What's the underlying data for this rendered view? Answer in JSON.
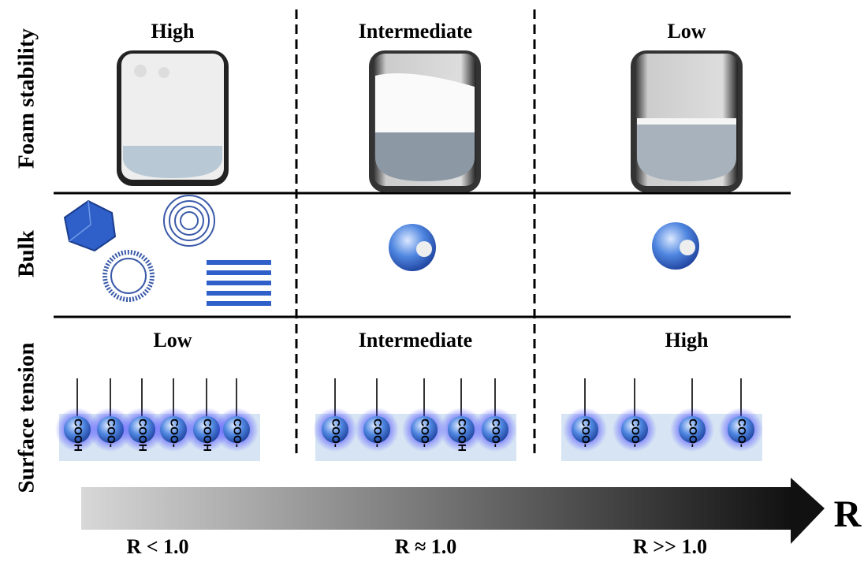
{
  "row_labels": [
    "Foam stability",
    "Bulk",
    "Surface tension"
  ],
  "foam_stability": [
    "High",
    "Intermediate",
    "Low"
  ],
  "surface_tension": {
    "levels": [
      "Low",
      "Intermediate",
      "High"
    ],
    "headgroups": [
      [
        "COOH",
        "COO-",
        "COOH",
        "COO-",
        "COOH",
        "COO-"
      ],
      [
        "COO-",
        "COO-",
        "COO-",
        "COOH",
        "COO-"
      ],
      [
        "COO-",
        "COO-",
        "COO-",
        "COO-"
      ]
    ]
  },
  "axis": {
    "label": "R",
    "ticks": [
      "R < 1.0",
      "R ≈ 1.0",
      "R >> 1.0"
    ]
  }
}
